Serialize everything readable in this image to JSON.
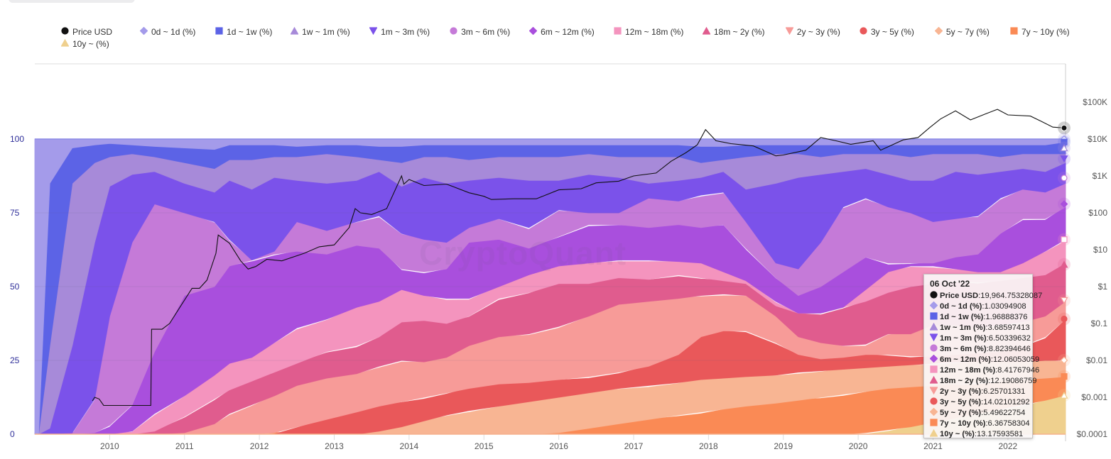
{
  "legend": [
    {
      "name": "Price USD",
      "marker": "circle",
      "color": "#111111"
    },
    {
      "name": "0d ~ 1d (%)",
      "marker": "diamond",
      "color": "#a49bea"
    },
    {
      "name": "1d ~ 1w (%)",
      "marker": "square",
      "color": "#5c63e6"
    },
    {
      "name": "1w ~ 1m (%)",
      "marker": "triangle-up",
      "color": "#a78ad9"
    },
    {
      "name": "1m ~ 3m (%)",
      "marker": "triangle-down",
      "color": "#7b52ea"
    },
    {
      "name": "3m ~ 6m (%)",
      "marker": "circle",
      "color": "#c57ad8"
    },
    {
      "name": "6m ~ 12m (%)",
      "marker": "diamond",
      "color": "#a94fdd"
    },
    {
      "name": "12m ~ 18m (%)",
      "marker": "square",
      "color": "#f494be"
    },
    {
      "name": "18m ~ 2y (%)",
      "marker": "triangle-up",
      "color": "#e05c8e"
    },
    {
      "name": "2y ~ 3y (%)",
      "marker": "triangle-down",
      "color": "#f79b98"
    },
    {
      "name": "3y ~ 5y (%)",
      "marker": "circle",
      "color": "#e9585a"
    },
    {
      "name": "5y ~ 7y (%)",
      "marker": "diamond",
      "color": "#f8b593"
    },
    {
      "name": "7y ~ 10y (%)",
      "marker": "square",
      "color": "#fa8a55"
    },
    {
      "name": "10y ~ (%)",
      "marker": "triangle-up",
      "color": "#efd08e"
    }
  ],
  "tooltip": {
    "date": "06 Oct '22",
    "rows": [
      {
        "name": "Price USD",
        "value": "19,964.75328087"
      },
      {
        "name": "0d ~ 1d (%)",
        "value": "1.03094908"
      },
      {
        "name": "1d ~ 1w (%)",
        "value": "1.96888376"
      },
      {
        "name": "1w ~ 1m (%)",
        "value": "3.68597413"
      },
      {
        "name": "1m ~ 3m (%)",
        "value": "6.50339632"
      },
      {
        "name": "3m ~ 6m (%)",
        "value": "8.82394646"
      },
      {
        "name": "6m ~ 12m (%)",
        "value": "12.06053059"
      },
      {
        "name": "12m ~ 18m (%)",
        "value": "8.41767946"
      },
      {
        "name": "18m ~ 2y (%)",
        "value": "12.19086759"
      },
      {
        "name": "2y ~ 3y (%)",
        "value": "6.25701331"
      },
      {
        "name": "3y ~ 5y (%)",
        "value": "14.02101292"
      },
      {
        "name": "5y ~ 7y (%)",
        "value": "5.49622754"
      },
      {
        "name": "7y ~ 10y (%)",
        "value": "6.36758304"
      },
      {
        "name": "10y ~ (%)",
        "value": "13.17593581"
      }
    ]
  },
  "watermark": "CryptoQuant",
  "chart_data": {
    "type": "area",
    "stacked": "percent",
    "title": "",
    "xlabel": "",
    "ylabel_left": "",
    "ylabel_right": "",
    "x_range": [
      2009.0,
      2022.77
    ],
    "ylim_left": [
      0,
      100
    ],
    "y_ticks_left": [
      "0",
      "25",
      "50",
      "75",
      "100"
    ],
    "y_ticks_left_values": [
      0,
      25,
      50,
      75,
      100
    ],
    "ylim_right_log": [
      0.0001,
      100000
    ],
    "y_ticks_right": [
      "$0.0001",
      "$0.001",
      "$0.01",
      "$0.1",
      "$1",
      "$10",
      "$100",
      "$1K",
      "$10K",
      "$100K"
    ],
    "y_ticks_right_values": [
      0.0001,
      0.001,
      0.01,
      0.1,
      1,
      10,
      100,
      1000,
      10000,
      100000
    ],
    "x_ticks": [
      "2010",
      "2011",
      "2012",
      "2013",
      "2014",
      "2015",
      "2016",
      "2017",
      "2018",
      "2019",
      "2020",
      "2021",
      "2022"
    ],
    "x_tick_values": [
      2010,
      2011,
      2012,
      2013,
      2014,
      2015,
      2016,
      2017,
      2018,
      2019,
      2020,
      2021,
      2022
    ],
    "grid": true,
    "legend_position": "top",
    "stack_order_bottom_to_top": [
      "10y ~ (%)",
      "7y ~ 10y (%)",
      "5y ~ 7y (%)",
      "3y ~ 5y (%)",
      "2y ~ 3y (%)",
      "18m ~ 2y (%)",
      "12m ~ 18m (%)",
      "6m ~ 12m (%)",
      "3m ~ 6m (%)",
      "1m ~ 3m (%)",
      "1w ~ 1m (%)",
      "1d ~ 1w (%)",
      "0d ~ 1d (%)"
    ],
    "x": [
      2009.0,
      2009.05,
      2009.2,
      2009.5,
      2009.8,
      2010.0,
      2010.3,
      2010.6,
      2011.0,
      2011.4,
      2011.6,
      2011.9,
      2012.2,
      2012.5,
      2012.9,
      2013.3,
      2013.6,
      2013.9,
      2014.2,
      2014.5,
      2014.8,
      2015.2,
      2015.6,
      2016.0,
      2016.4,
      2016.8,
      2017.2,
      2017.6,
      2017.9,
      2018.2,
      2018.5,
      2018.9,
      2019.2,
      2019.5,
      2019.8,
      2020.1,
      2020.4,
      2020.7,
      2021.0,
      2021.3,
      2021.6,
      2021.9,
      2022.2,
      2022.5,
      2022.77
    ],
    "cumulative_top_boundaries_pct": {
      "10y ~ (%)": [
        0,
        0,
        0,
        0,
        0,
        0,
        0,
        0,
        0,
        0,
        0,
        0,
        0,
        0,
        0,
        0,
        0,
        0,
        0,
        0,
        0,
        0,
        0,
        0,
        0,
        0,
        0,
        0,
        0,
        0,
        0,
        0,
        0,
        0,
        0,
        0.5,
        1.5,
        2.5,
        4,
        5.5,
        7,
        8.5,
        10,
        11.5,
        13.2
      ],
      "7y ~ 10y (%)": [
        0,
        0,
        0,
        0,
        0,
        0,
        0,
        0,
        0,
        0,
        0,
        0,
        0,
        0,
        0,
        0,
        0,
        0,
        0,
        0,
        0,
        0,
        0,
        0.5,
        2,
        3.5,
        5,
        6.5,
        7.5,
        8.5,
        9.5,
        10.5,
        11.5,
        12.5,
        13.5,
        14.5,
        15.5,
        16,
        16.5,
        17,
        17.5,
        18,
        18.5,
        19,
        19.5
      ],
      "5y ~ 7y (%)": [
        0,
        0,
        0,
        0,
        0,
        0,
        0,
        0,
        0,
        0,
        0,
        0,
        0,
        0,
        0,
        0,
        1,
        2.5,
        4.5,
        6.5,
        8,
        9.5,
        11,
        12.5,
        14,
        15.5,
        16.5,
        17.5,
        18.5,
        19,
        19.5,
        20,
        21,
        21.5,
        22,
        22.5,
        23,
        23.5,
        24,
        24.5,
        24.5,
        24.5,
        24.5,
        25,
        25
      ],
      "3y ~ 5y (%)": [
        0,
        0,
        0,
        0,
        0,
        0,
        0,
        0,
        0,
        0,
        0,
        0,
        0.5,
        2.5,
        5,
        7.5,
        9.5,
        11,
        12.5,
        14,
        15.5,
        17,
        17.5,
        18.5,
        19.5,
        21,
        23,
        27,
        33,
        35,
        35,
        31,
        27,
        25.5,
        26,
        27,
        27,
        26.5,
        26.5,
        27,
        27.5,
        28,
        30,
        33,
        39
      ],
      "2y ~ 3y (%)": [
        0,
        0,
        0,
        0,
        0,
        0,
        0,
        0,
        0.5,
        3.5,
        7,
        10,
        13,
        16.5,
        19,
        20.5,
        23,
        25,
        24.5,
        26,
        30,
        33,
        34,
        36.5,
        40,
        44,
        45,
        46,
        47,
        47.5,
        47,
        40,
        33,
        31,
        30,
        30.5,
        34,
        34,
        37,
        37,
        36,
        37,
        38,
        40,
        45
      ],
      "18m ~ 2y (%)": [
        0,
        0,
        0,
        0,
        0,
        0,
        0,
        1,
        6,
        12,
        15,
        18,
        21,
        24,
        28,
        30,
        33,
        38,
        38.5,
        37.5,
        40,
        46,
        48,
        51,
        51,
        53,
        52.5,
        54,
        53,
        52,
        51,
        43.5,
        41,
        41,
        43,
        45,
        48,
        50,
        51,
        52,
        51.5,
        52,
        53,
        54,
        58
      ],
      "12m ~ 18m (%)": [
        0,
        0,
        0,
        0,
        0,
        0,
        1,
        7,
        13,
        20,
        24,
        26,
        31,
        36,
        39,
        43,
        45,
        49,
        47,
        46,
        46,
        50,
        54,
        57,
        58,
        59,
        59,
        58.5,
        58,
        55,
        52,
        45,
        41,
        41,
        43,
        49,
        55,
        57,
        57,
        56,
        55,
        55,
        58,
        62,
        66
      ],
      "6m ~ 12m (%)": [
        0,
        0,
        0,
        0,
        0.5,
        3,
        10,
        28,
        47,
        50,
        57,
        59,
        61,
        62,
        61,
        64,
        63,
        56,
        55,
        56,
        65,
        66,
        63,
        67,
        71,
        71,
        70,
        71,
        70,
        71,
        63,
        53,
        47,
        50,
        55,
        60,
        58,
        58,
        58,
        60,
        61,
        68,
        73,
        73,
        77
      ],
      "3m ~ 6m (%)": [
        0,
        0,
        0,
        0.5,
        12,
        40,
        65,
        78,
        75,
        72,
        66,
        58,
        62,
        72,
        69,
        72,
        74,
        68,
        66,
        65,
        70,
        73,
        70,
        76,
        75,
        75,
        80,
        79,
        81,
        82,
        72,
        58,
        56,
        65,
        77,
        80,
        77,
        75,
        72,
        73,
        74,
        80,
        83,
        82,
        85
      ],
      "1m ~ 3m (%)": [
        0,
        0,
        2,
        30,
        65,
        84,
        88,
        89,
        85,
        82,
        86,
        83,
        87,
        86,
        85,
        86,
        89,
        84,
        87,
        85,
        86,
        87,
        86,
        86,
        88,
        87,
        85,
        86,
        87,
        89,
        83,
        85,
        87,
        88,
        89,
        90,
        88,
        86,
        86,
        89,
        88,
        89,
        90,
        89,
        92
      ],
      "1w ~ 1m (%)": [
        0,
        0,
        30,
        85,
        92,
        94,
        95,
        94,
        92,
        90,
        93,
        93,
        94,
        94,
        95,
        94,
        93,
        92,
        94,
        94,
        93,
        94,
        94,
        94,
        95,
        94,
        94,
        94,
        92,
        93,
        94,
        95,
        95,
        94,
        95,
        95,
        95,
        94,
        95,
        95,
        95,
        94,
        95,
        95,
        95
      ],
      "1d ~ 1w (%)": [
        0,
        0,
        85,
        97,
        98,
        98.5,
        98,
        97.5,
        97,
        96.5,
        98,
        98,
        98,
        97.5,
        98,
        98,
        97.5,
        97.5,
        98,
        98,
        98,
        98,
        98,
        98,
        98,
        98,
        98,
        98,
        97.5,
        97.5,
        98,
        98,
        98,
        98,
        98,
        98,
        98,
        98,
        98,
        98,
        98,
        98,
        98,
        98,
        99
      ],
      "0d ~ 1d (%)": [
        100,
        100,
        100,
        100,
        100,
        100,
        100,
        100,
        100,
        100,
        100,
        100,
        100,
        100,
        100,
        100,
        100,
        100,
        100,
        100,
        100,
        100,
        100,
        100,
        100,
        100,
        100,
        100,
        100,
        100,
        100,
        100,
        100,
        100,
        100,
        100,
        100,
        100,
        100,
        100,
        100,
        100,
        100,
        100,
        100
      ]
    },
    "latest_values_pct": {
      "0d ~ 1d (%)": 1.03094908,
      "1d ~ 1w (%)": 1.96888376,
      "1w ~ 1m (%)": 3.68597413,
      "1m ~ 3m (%)": 6.50339632,
      "3m ~ 6m (%)": 8.82394646,
      "6m ~ 12m (%)": 12.06053059,
      "12m ~ 18m (%)": 8.41767946,
      "18m ~ 2y (%)": 12.19086759,
      "2y ~ 3y (%)": 6.25701331,
      "3y ~ 5y (%)": 14.02101292,
      "5y ~ 7y (%)": 5.49622754,
      "7y ~ 10y (%)": 6.36758304,
      "10y ~ (%)": 13.17593581
    },
    "price_series": {
      "name": "Price USD",
      "x": [
        2009.77,
        2009.8,
        2009.86,
        2009.92,
        2010.0,
        2010.1,
        2010.55,
        2010.56,
        2010.7,
        2010.8,
        2010.95,
        2011.1,
        2011.2,
        2011.3,
        2011.42,
        2011.45,
        2011.6,
        2011.75,
        2011.85,
        2011.95,
        2012.1,
        2012.3,
        2012.6,
        2012.8,
        2013.0,
        2013.2,
        2013.28,
        2013.35,
        2013.5,
        2013.7,
        2013.9,
        2013.93,
        2014.0,
        2014.2,
        2014.5,
        2014.8,
        2015.0,
        2015.1,
        2015.4,
        2015.7,
        2016.0,
        2016.3,
        2016.5,
        2016.8,
        2017.0,
        2017.3,
        2017.5,
        2017.7,
        2017.85,
        2017.96,
        2018.1,
        2018.3,
        2018.6,
        2018.9,
        2019.0,
        2019.3,
        2019.5,
        2019.7,
        2019.9,
        2020.2,
        2020.3,
        2020.6,
        2020.8,
        2020.95,
        2021.1,
        2021.3,
        2021.5,
        2021.7,
        2021.86,
        2022.0,
        2022.3,
        2022.45,
        2022.6,
        2022.77
      ],
      "y": [
        0.0008,
        0.001,
        0.0009,
        0.0006,
        0.0006,
        0.0006,
        0.0006,
        0.07,
        0.07,
        0.1,
        0.3,
        0.9,
        0.9,
        1.5,
        8,
        25,
        15,
        5,
        3,
        3.5,
        5.5,
        5,
        8,
        12,
        13.5,
        40,
        130,
        100,
        90,
        130,
        1000,
        600,
        800,
        550,
        600,
        350,
        280,
        230,
        240,
        240,
        420,
        450,
        650,
        720,
        1000,
        1200,
        2500,
        4300,
        7000,
        18000,
        9000,
        7500,
        6500,
        3500,
        3700,
        5000,
        11000,
        9000,
        7200,
        9000,
        5000,
        9500,
        11000,
        20000,
        35000,
        58000,
        33000,
        48000,
        64000,
        45000,
        42000,
        30000,
        21000,
        19964.75
      ]
    }
  }
}
